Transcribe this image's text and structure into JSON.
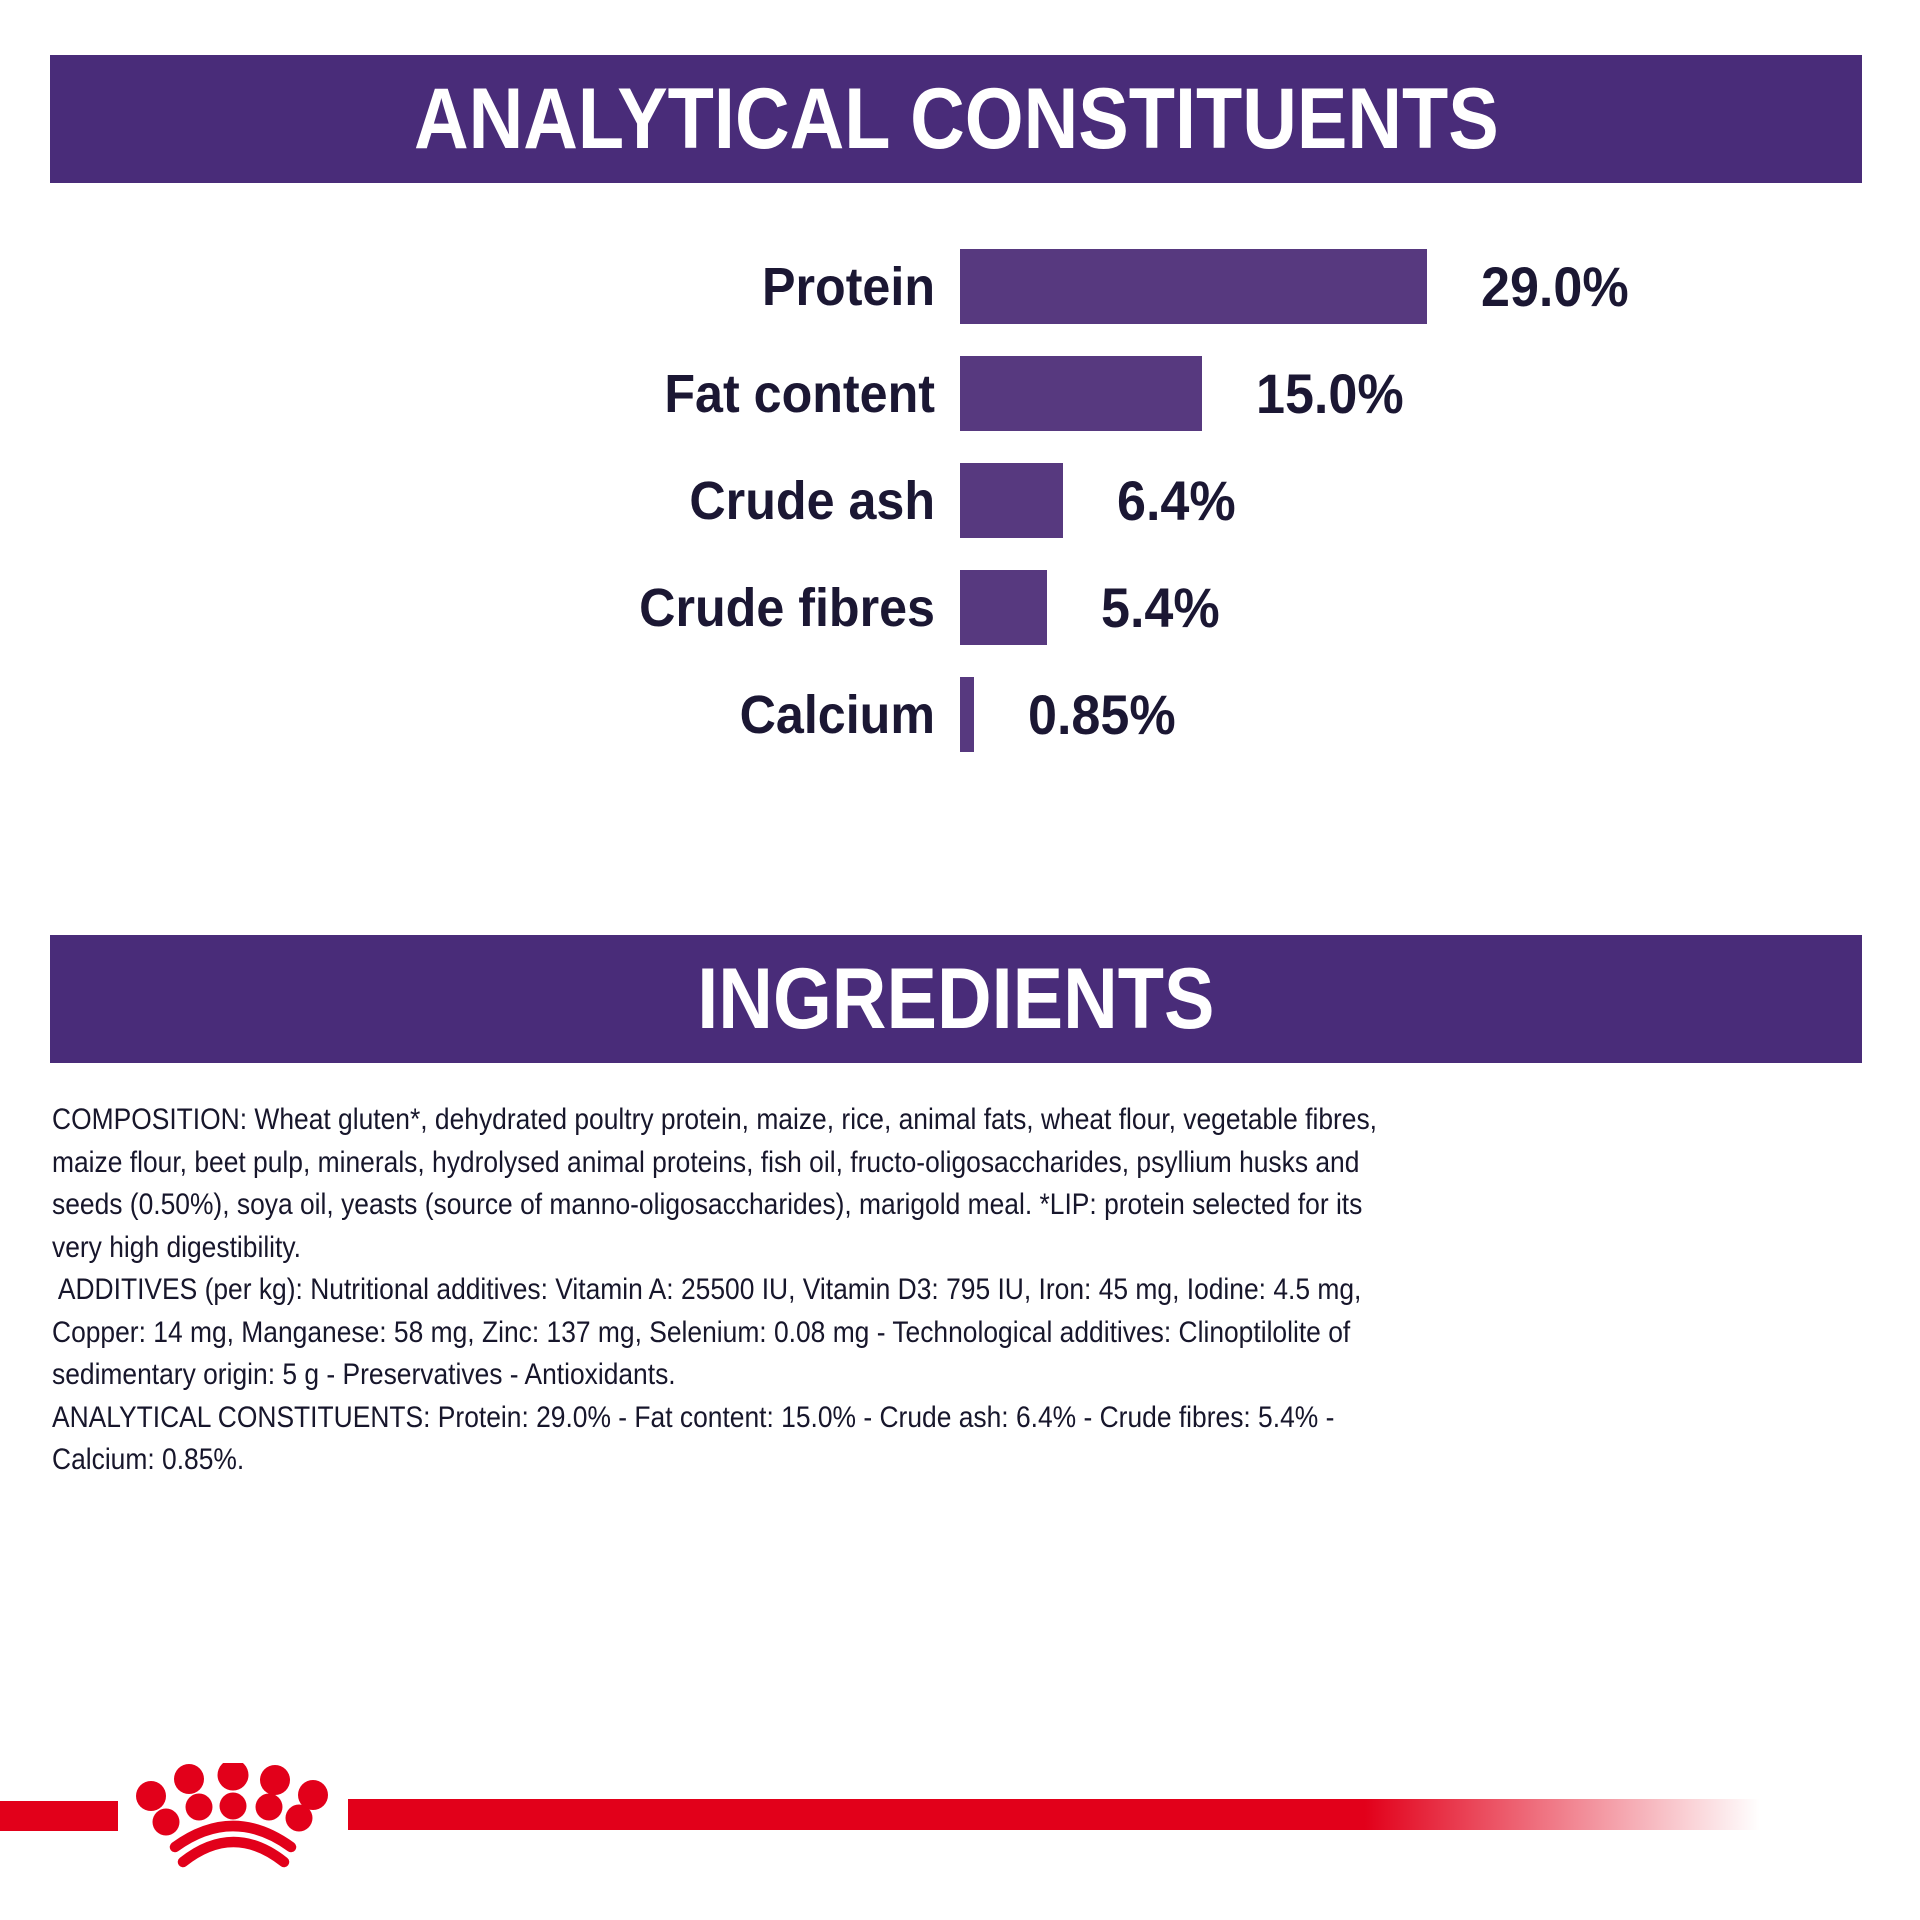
{
  "sections": {
    "analytical": {
      "title": "ANALYTICAL CONSTITUENTS"
    },
    "ingredients": {
      "title": "INGREDIENTS"
    }
  },
  "chart_data": {
    "type": "bar",
    "orientation": "horizontal",
    "title": "ANALYTICAL CONSTITUENTS",
    "categories": [
      "Protein",
      "Fat content",
      "Crude ash",
      "Crude fibres",
      "Calcium"
    ],
    "values": [
      29.0,
      15.0,
      6.4,
      5.4,
      0.85
    ],
    "value_labels": [
      "29.0%",
      "15.0%",
      "6.4%",
      "5.4%",
      "0.85%"
    ],
    "unit": "%",
    "xlim": [
      0,
      30
    ],
    "grid": false,
    "legend": false,
    "bar_color": "#57397f",
    "label_color": "#1b1733"
  },
  "ingredients": {
    "lines": [
      "COMPOSITION: Wheat gluten*, dehydrated poultry protein, maize, rice, animal fats, wheat flour, vegetable fibres,",
      "maize flour, beet pulp, minerals, hydrolysed animal proteins, fish oil, fructo-oligosaccharides, psyllium husks and",
      "seeds (0.50%), soya oil, yeasts (source of manno-oligosaccharides), marigold meal. *LIP: protein selected for its",
      "very high digestibility.",
      " ADDITIVES (per kg): Nutritional additives: Vitamin A: 25500 IU, Vitamin D3: 795 IU, Iron: 45 mg, Iodine: 4.5 mg,",
      "Copper: 14 mg, Manganese: 58 mg, Zinc: 137 mg, Selenium: 0.08 mg - Technological additives: Clinoptilolite of",
      "sedimentary origin: 5 g - Preservatives - Antioxidants.",
      "ANALYTICAL CONSTITUENTS: Protein: 29.0% - Fat content: 15.0% - Crude ash: 6.4% - Crude fibres: 5.4% -",
      "Calcium: 0.85%."
    ]
  },
  "colors": {
    "banner_purple": "#492c79",
    "bar_purple": "#57397f",
    "text_dark": "#1b1733",
    "brand_red": "#e2001a"
  },
  "footer": {
    "logo": "royal-canin-crown-logo"
  }
}
